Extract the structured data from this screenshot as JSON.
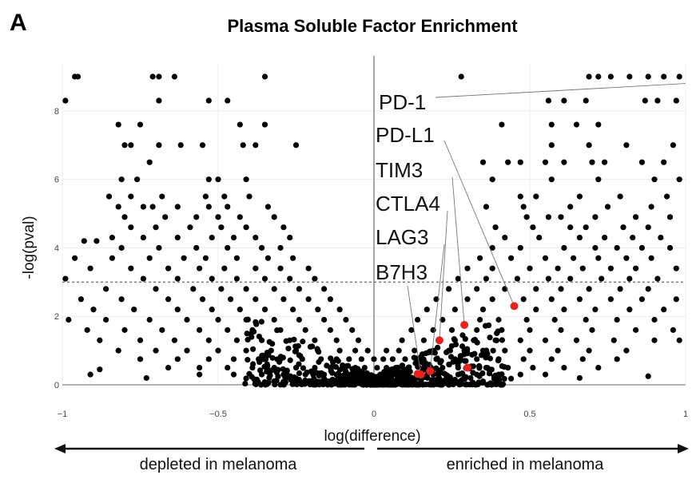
{
  "panel_letter": "A",
  "chart_data": {
    "type": "scatter",
    "title": "Plasma Soluble Factor Enrichment",
    "xlabel": "log(difference)",
    "ylabel": "-log(pval)",
    "xlim": [
      -1,
      1
    ],
    "ylim": [
      0,
      9
    ],
    "x_ticks": [
      {
        "value": -1,
        "label": "−1"
      },
      {
        "value": -0.5,
        "label": "−0.5"
      },
      {
        "value": 0,
        "label": "0"
      },
      {
        "value": 0.5,
        "label": "0.5"
      },
      {
        "value": 1,
        "label": "1"
      }
    ],
    "y_ticks": [
      {
        "value": 0,
        "label": "0"
      },
      {
        "value": 2,
        "label": "2"
      },
      {
        "value": 4,
        "label": "4"
      },
      {
        "value": 6,
        "label": "6"
      },
      {
        "value": 8,
        "label": "8"
      }
    ],
    "threshold": 3,
    "grid": true,
    "background_point_color": "#000000",
    "highlight_color": "#e8231f",
    "highlighted": [
      {
        "name": "PD-1",
        "x": 1.0,
        "y": 8.8
      },
      {
        "name": "PD-L1",
        "x": 0.45,
        "y": 2.3
      },
      {
        "name": "TIM3",
        "x": 0.29,
        "y": 1.75
      },
      {
        "name": "CTLA4",
        "x": 0.21,
        "y": 1.3
      },
      {
        "name": "LAG3",
        "x": 0.18,
        "y": 0.4
      },
      {
        "name": "B7H3",
        "x": 0.15,
        "y": 0.3
      }
    ],
    "extra_highlighted_points": [
      {
        "x": 0.3,
        "y": 0.5
      },
      {
        "x": 0.14,
        "y": 0.32
      }
    ],
    "background_points": [
      [
        -0.96,
        9.0
      ],
      [
        -0.95,
        9.0
      ],
      [
        -0.71,
        9.0
      ],
      [
        -0.69,
        9.0
      ],
      [
        -0.64,
        9.0
      ],
      [
        -0.35,
        9.0
      ],
      [
        0.28,
        9.0
      ],
      [
        0.69,
        9.0
      ],
      [
        0.72,
        9.0
      ],
      [
        0.76,
        9.0
      ],
      [
        0.82,
        9.0
      ],
      [
        0.88,
        9.0
      ],
      [
        0.93,
        9.0
      ],
      [
        0.98,
        9.0
      ],
      [
        -0.99,
        8.3
      ],
      [
        -0.69,
        8.3
      ],
      [
        -0.53,
        8.3
      ],
      [
        -0.47,
        8.3
      ],
      [
        0.56,
        8.3
      ],
      [
        0.61,
        8.3
      ],
      [
        0.68,
        8.3
      ],
      [
        0.87,
        8.3
      ],
      [
        0.91,
        8.3
      ],
      [
        0.97,
        8.3
      ],
      [
        -0.82,
        7.6
      ],
      [
        -0.75,
        7.6
      ],
      [
        -0.43,
        7.6
      ],
      [
        -0.35,
        7.6
      ],
      [
        0.41,
        7.6
      ],
      [
        0.57,
        7.6
      ],
      [
        0.65,
        7.6
      ],
      [
        0.72,
        7.6
      ],
      [
        -0.8,
        7.0
      ],
      [
        -0.78,
        7.0
      ],
      [
        -0.69,
        7.0
      ],
      [
        -0.62,
        7.0
      ],
      [
        -0.55,
        7.0
      ],
      [
        -0.42,
        7.0
      ],
      [
        -0.38,
        7.0
      ],
      [
        -0.25,
        7.0
      ],
      [
        0.57,
        7.0
      ],
      [
        0.69,
        7.0
      ],
      [
        0.81,
        7.0
      ],
      [
        0.96,
        7.0
      ],
      [
        -0.72,
        6.5
      ],
      [
        0.35,
        6.5
      ],
      [
        0.43,
        6.5
      ],
      [
        0.47,
        6.5
      ],
      [
        0.55,
        6.5
      ],
      [
        0.61,
        6.5
      ],
      [
        0.7,
        6.5
      ],
      [
        0.74,
        6.5
      ],
      [
        0.86,
        6.5
      ],
      [
        0.93,
        6.5
      ],
      [
        -0.81,
        6.0
      ],
      [
        -0.76,
        6.0
      ],
      [
        -0.53,
        6.0
      ],
      [
        -0.5,
        6.0
      ],
      [
        -0.41,
        6.0
      ],
      [
        0.38,
        6.0
      ],
      [
        0.57,
        6.0
      ],
      [
        0.72,
        6.0
      ],
      [
        0.9,
        6.0
      ],
      [
        0.98,
        6.0
      ],
      [
        -0.85,
        5.5
      ],
      [
        -0.78,
        5.5
      ],
      [
        -0.68,
        5.5
      ],
      [
        -0.54,
        5.5
      ],
      [
        -0.48,
        5.5
      ],
      [
        -0.4,
        5.5
      ],
      [
        0.47,
        5.5
      ],
      [
        0.52,
        5.5
      ],
      [
        0.66,
        5.5
      ],
      [
        0.79,
        5.5
      ],
      [
        0.94,
        5.5
      ],
      [
        -0.82,
        5.2
      ],
      [
        -0.74,
        5.2
      ],
      [
        -0.71,
        5.2
      ],
      [
        -0.63,
        5.2
      ],
      [
        -0.53,
        5.2
      ],
      [
        -0.47,
        5.2
      ],
      [
        -0.34,
        5.2
      ],
      [
        0.36,
        5.2
      ],
      [
        0.48,
        5.2
      ],
      [
        0.63,
        5.2
      ],
      [
        0.75,
        5.2
      ],
      [
        0.89,
        5.2
      ],
      [
        -0.8,
        4.9
      ],
      [
        -0.67,
        4.9
      ],
      [
        -0.57,
        4.9
      ],
      [
        -0.5,
        4.9
      ],
      [
        -0.43,
        4.9
      ],
      [
        -0.32,
        4.9
      ],
      [
        0.49,
        4.9
      ],
      [
        0.56,
        4.9
      ],
      [
        0.6,
        4.9
      ],
      [
        0.71,
        4.9
      ],
      [
        0.84,
        4.9
      ],
      [
        0.95,
        4.9
      ],
      [
        -0.78,
        4.6
      ],
      [
        -0.7,
        4.6
      ],
      [
        -0.59,
        4.6
      ],
      [
        -0.49,
        4.6
      ],
      [
        -0.41,
        4.6
      ],
      [
        -0.29,
        4.6
      ],
      [
        0.39,
        4.6
      ],
      [
        0.51,
        4.6
      ],
      [
        0.63,
        4.6
      ],
      [
        0.68,
        4.6
      ],
      [
        0.8,
        4.6
      ],
      [
        0.88,
        4.6
      ],
      [
        -0.84,
        4.3
      ],
      [
        -0.74,
        4.3
      ],
      [
        -0.63,
        4.3
      ],
      [
        -0.52,
        4.3
      ],
      [
        -0.45,
        4.3
      ],
      [
        -0.38,
        4.3
      ],
      [
        -0.27,
        4.3
      ],
      [
        0.42,
        4.3
      ],
      [
        0.53,
        4.3
      ],
      [
        0.66,
        4.3
      ],
      [
        0.74,
        4.3
      ],
      [
        0.83,
        4.3
      ],
      [
        0.92,
        4.3
      ],
      [
        -0.93,
        4.2
      ],
      [
        -0.89,
        4.2
      ],
      [
        -0.81,
        4.0
      ],
      [
        -0.69,
        4.0
      ],
      [
        -0.57,
        4.0
      ],
      [
        -0.47,
        4.0
      ],
      [
        -0.36,
        4.0
      ],
      [
        -0.3,
        4.0
      ],
      [
        0.38,
        4.0
      ],
      [
        0.47,
        4.0
      ],
      [
        0.61,
        4.0
      ],
      [
        0.71,
        4.0
      ],
      [
        0.78,
        4.0
      ],
      [
        0.86,
        4.0
      ],
      [
        0.95,
        4.0
      ],
      [
        -0.96,
        3.7
      ],
      [
        -0.84,
        3.7
      ],
      [
        -0.72,
        3.7
      ],
      [
        -0.61,
        3.7
      ],
      [
        -0.54,
        3.7
      ],
      [
        -0.44,
        3.7
      ],
      [
        -0.34,
        3.7
      ],
      [
        -0.26,
        3.7
      ],
      [
        0.34,
        3.7
      ],
      [
        0.44,
        3.7
      ],
      [
        0.55,
        3.7
      ],
      [
        0.64,
        3.7
      ],
      [
        0.72,
        3.7
      ],
      [
        0.81,
        3.7
      ],
      [
        0.89,
        3.7
      ],
      [
        -0.91,
        3.4
      ],
      [
        -0.78,
        3.4
      ],
      [
        -0.66,
        3.4
      ],
      [
        -0.56,
        3.4
      ],
      [
        -0.48,
        3.4
      ],
      [
        -0.38,
        3.4
      ],
      [
        -0.3,
        3.4
      ],
      [
        -0.21,
        3.4
      ],
      [
        0.3,
        3.4
      ],
      [
        0.38,
        3.4
      ],
      [
        0.5,
        3.4
      ],
      [
        0.59,
        3.4
      ],
      [
        0.67,
        3.4
      ],
      [
        0.76,
        3.4
      ],
      [
        0.84,
        3.4
      ],
      [
        0.97,
        3.4
      ],
      [
        -0.99,
        3.1
      ],
      [
        -0.74,
        3.1
      ],
      [
        -0.63,
        3.1
      ],
      [
        -0.52,
        3.1
      ],
      [
        -0.44,
        3.1
      ],
      [
        -0.35,
        3.1
      ],
      [
        -0.27,
        3.1
      ],
      [
        -0.19,
        3.1
      ],
      [
        0.27,
        3.1
      ],
      [
        0.36,
        3.1
      ],
      [
        0.46,
        3.1
      ],
      [
        0.56,
        3.1
      ],
      [
        0.63,
        3.1
      ],
      [
        0.73,
        3.1
      ],
      [
        0.82,
        3.1
      ],
      [
        0.91,
        3.1
      ],
      [
        -0.86,
        2.8
      ],
      [
        -0.7,
        2.8
      ],
      [
        -0.58,
        2.8
      ],
      [
        -0.49,
        2.8
      ],
      [
        -0.41,
        2.8
      ],
      [
        -0.32,
        2.8
      ],
      [
        -0.24,
        2.8
      ],
      [
        -0.16,
        2.8
      ],
      [
        0.24,
        2.8
      ],
      [
        0.33,
        2.8
      ],
      [
        0.42,
        2.8
      ],
      [
        0.52,
        2.8
      ],
      [
        0.6,
        2.8
      ],
      [
        0.69,
        2.8
      ],
      [
        0.79,
        2.8
      ],
      [
        0.88,
        2.8
      ],
      [
        -0.94,
        2.5
      ],
      [
        -0.81,
        2.5
      ],
      [
        -0.66,
        2.5
      ],
      [
        -0.55,
        2.5
      ],
      [
        -0.46,
        2.5
      ],
      [
        -0.38,
        2.5
      ],
      [
        -0.29,
        2.5
      ],
      [
        -0.21,
        2.5
      ],
      [
        -0.14,
        2.5
      ],
      [
        0.2,
        2.5
      ],
      [
        0.3,
        2.5
      ],
      [
        0.38,
        2.5
      ],
      [
        0.48,
        2.5
      ],
      [
        0.57,
        2.5
      ],
      [
        0.66,
        2.5
      ],
      [
        0.76,
        2.5
      ],
      [
        0.86,
        2.5
      ],
      [
        0.97,
        2.5
      ],
      [
        -0.9,
        2.2
      ],
      [
        -0.77,
        2.2
      ],
      [
        -0.63,
        2.2
      ],
      [
        -0.52,
        2.2
      ],
      [
        -0.43,
        2.2
      ],
      [
        -0.35,
        2.2
      ],
      [
        -0.26,
        2.2
      ],
      [
        -0.18,
        2.2
      ],
      [
        -0.11,
        2.2
      ],
      [
        0.17,
        2.2
      ],
      [
        0.26,
        2.2
      ],
      [
        0.35,
        2.2
      ],
      [
        0.52,
        2.2
      ],
      [
        0.61,
        2.2
      ],
      [
        0.71,
        2.2
      ],
      [
        0.82,
        2.2
      ],
      [
        0.93,
        2.2
      ],
      [
        -0.98,
        1.9
      ],
      [
        -0.86,
        1.9
      ],
      [
        -0.72,
        1.9
      ],
      [
        -0.6,
        1.9
      ],
      [
        -0.5,
        1.9
      ],
      [
        -0.41,
        1.9
      ],
      [
        -0.32,
        1.9
      ],
      [
        -0.24,
        1.9
      ],
      [
        -0.16,
        1.9
      ],
      [
        -0.09,
        1.9
      ],
      [
        0.14,
        1.9
      ],
      [
        0.22,
        1.9
      ],
      [
        0.34,
        1.9
      ],
      [
        0.4,
        1.9
      ],
      [
        0.49,
        1.9
      ],
      [
        0.58,
        1.9
      ],
      [
        0.68,
        1.9
      ],
      [
        0.78,
        1.9
      ],
      [
        0.9,
        1.9
      ],
      [
        -0.92,
        1.6
      ],
      [
        -0.8,
        1.6
      ],
      [
        -0.68,
        1.6
      ],
      [
        -0.56,
        1.6
      ],
      [
        -0.47,
        1.6
      ],
      [
        -0.39,
        1.6
      ],
      [
        -0.3,
        1.6
      ],
      [
        -0.22,
        1.6
      ],
      [
        -0.14,
        1.6
      ],
      [
        -0.07,
        1.6
      ],
      [
        0.12,
        1.6
      ],
      [
        0.19,
        1.6
      ],
      [
        0.25,
        1.6
      ],
      [
        0.33,
        1.6
      ],
      [
        0.41,
        1.6
      ],
      [
        0.5,
        1.6
      ],
      [
        0.6,
        1.6
      ],
      [
        0.7,
        1.6
      ],
      [
        0.84,
        1.6
      ],
      [
        0.96,
        1.6
      ],
      [
        -0.88,
        1.3
      ],
      [
        -0.75,
        1.3
      ],
      [
        -0.64,
        1.3
      ],
      [
        -0.53,
        1.3
      ],
      [
        -0.44,
        1.3
      ],
      [
        -0.36,
        1.3
      ],
      [
        -0.27,
        1.3
      ],
      [
        -0.19,
        1.3
      ],
      [
        -0.12,
        1.3
      ],
      [
        -0.05,
        1.3
      ],
      [
        0.09,
        1.3
      ],
      [
        0.16,
        1.3
      ],
      [
        0.26,
        1.3
      ],
      [
        0.32,
        1.3
      ],
      [
        0.39,
        1.3
      ],
      [
        0.47,
        1.3
      ],
      [
        0.55,
        1.3
      ],
      [
        0.65,
        1.3
      ],
      [
        0.77,
        1.3
      ],
      [
        0.9,
        1.3
      ],
      [
        -0.82,
        1.0
      ],
      [
        -0.7,
        1.0
      ],
      [
        -0.6,
        1.0
      ],
      [
        -0.5,
        1.0
      ],
      [
        -0.41,
        1.0
      ],
      [
        -0.33,
        1.0
      ],
      [
        -0.25,
        1.0
      ],
      [
        -0.18,
        1.0
      ],
      [
        -0.11,
        1.0
      ],
      [
        -0.06,
        1.0
      ],
      [
        -0.02,
        1.0
      ],
      [
        0.04,
        1.0
      ],
      [
        0.08,
        1.0
      ],
      [
        0.13,
        1.0
      ],
      [
        0.19,
        1.0
      ],
      [
        0.24,
        1.0
      ],
      [
        0.29,
        1.0
      ],
      [
        0.35,
        1.0
      ],
      [
        0.42,
        1.0
      ],
      [
        0.5,
        1.0
      ],
      [
        0.59,
        1.0
      ],
      [
        0.69,
        1.0
      ],
      [
        0.81,
        1.0
      ],
      [
        -0.75,
        0.75
      ],
      [
        -0.63,
        0.75
      ],
      [
        -0.53,
        0.75
      ],
      [
        -0.45,
        0.75
      ],
      [
        -0.37,
        0.75
      ],
      [
        -0.3,
        0.75
      ],
      [
        -0.23,
        0.75
      ],
      [
        -0.17,
        0.75
      ],
      [
        -0.12,
        0.75
      ],
      [
        -0.08,
        0.75
      ],
      [
        -0.04,
        0.75
      ],
      [
        0.0,
        0.75
      ],
      [
        0.03,
        0.75
      ],
      [
        0.06,
        0.75
      ],
      [
        0.1,
        0.75
      ],
      [
        0.15,
        0.75
      ],
      [
        0.2,
        0.75
      ],
      [
        0.26,
        0.75
      ],
      [
        0.33,
        0.75
      ],
      [
        0.4,
        0.75
      ],
      [
        0.48,
        0.75
      ],
      [
        0.57,
        0.75
      ],
      [
        0.67,
        0.75
      ],
      [
        0.78,
        0.75
      ],
      [
        -0.66,
        0.5
      ],
      [
        -0.56,
        0.5
      ],
      [
        -0.47,
        0.5
      ],
      [
        -0.39,
        0.5
      ],
      [
        -0.32,
        0.5
      ],
      [
        -0.25,
        0.5
      ],
      [
        -0.19,
        0.5
      ],
      [
        -0.14,
        0.5
      ],
      [
        -0.1,
        0.5
      ],
      [
        -0.06,
        0.5
      ],
      [
        -0.03,
        0.5
      ],
      [
        0.01,
        0.5
      ],
      [
        0.04,
        0.5
      ],
      [
        0.07,
        0.5
      ],
      [
        0.11,
        0.5
      ],
      [
        0.16,
        0.5
      ],
      [
        0.22,
        0.5
      ],
      [
        0.27,
        0.5
      ],
      [
        0.36,
        0.5
      ],
      [
        0.43,
        0.5
      ],
      [
        0.51,
        0.5
      ],
      [
        0.61,
        0.5
      ],
      [
        0.72,
        0.5
      ],
      [
        -0.56,
        0.3
      ],
      [
        -0.45,
        0.3
      ],
      [
        -0.36,
        0.3
      ],
      [
        -0.29,
        0.3
      ],
      [
        -0.22,
        0.3
      ],
      [
        -0.16,
        0.3
      ],
      [
        -0.12,
        0.3
      ],
      [
        -0.08,
        0.3
      ],
      [
        -0.05,
        0.3
      ],
      [
        -0.02,
        0.3
      ],
      [
        0.02,
        0.3
      ],
      [
        0.05,
        0.3
      ],
      [
        0.08,
        0.3
      ],
      [
        0.1,
        0.3
      ],
      [
        0.19,
        0.3
      ],
      [
        0.23,
        0.3
      ],
      [
        0.27,
        0.3
      ],
      [
        0.33,
        0.3
      ],
      [
        0.4,
        0.3
      ],
      [
        0.47,
        0.3
      ],
      [
        0.55,
        0.3
      ],
      [
        -0.91,
        0.3
      ],
      [
        -0.88,
        0.45
      ],
      [
        -0.73,
        0.2
      ],
      [
        -0.24,
        0.15
      ],
      [
        -0.19,
        0.12
      ],
      [
        -0.13,
        0.1
      ],
      [
        -0.09,
        0.08
      ],
      [
        -0.06,
        0.12
      ],
      [
        -0.03,
        0.05
      ],
      [
        0.0,
        0.15
      ],
      [
        0.02,
        0.05
      ],
      [
        0.04,
        0.1
      ],
      [
        0.06,
        0.08
      ],
      [
        0.09,
        0.12
      ],
      [
        0.12,
        0.15
      ],
      [
        0.22,
        0.1
      ],
      [
        0.26,
        0.15
      ],
      [
        0.31,
        0.2
      ],
      [
        0.35,
        0.1
      ],
      [
        0.39,
        0.15
      ],
      [
        0.44,
        0.18
      ],
      [
        0.66,
        0.2
      ],
      [
        0.88,
        0.25
      ],
      [
        0.98,
        1.3
      ]
    ]
  },
  "annotation": {
    "left_arrow_text": "depleted in melanoma",
    "right_arrow_text": "enriched in melanoma"
  }
}
